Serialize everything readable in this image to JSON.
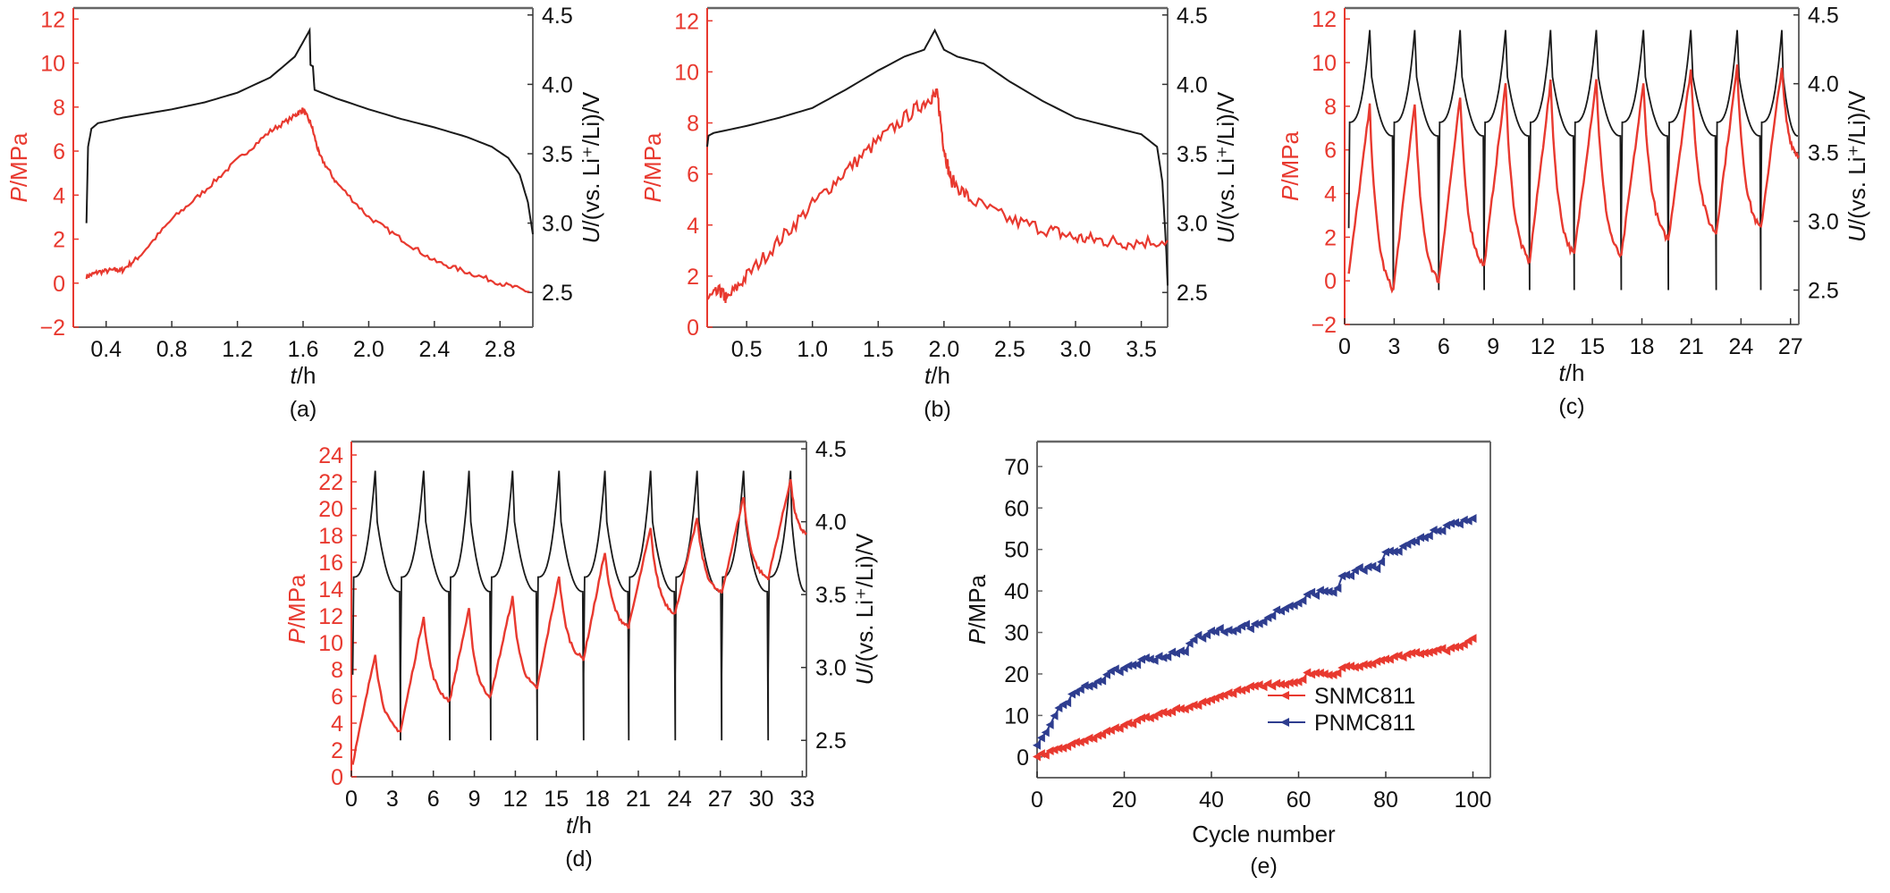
{
  "colors": {
    "pressure": "#e8392f",
    "voltage": "#1a1a1a",
    "snmc": "#e8392f",
    "pnmc": "#2e3d8f",
    "frame": "#666666"
  },
  "chart_data": [
    {
      "id": "a",
      "type": "line",
      "panel_label": "(a)",
      "xlabel_italic": "t",
      "xlabel_rest": "/h",
      "ylabel_italic": "P",
      "ylabel_rest": "/MPa",
      "y2label_italic": "U",
      "y2label_rest": "/(vs. Li⁺/Li)/V",
      "xlim": [
        0.2,
        3.0
      ],
      "ylim": [
        -2,
        12.5
      ],
      "y2lim": [
        2.25,
        4.55
      ],
      "xticks": [
        0.4,
        0.8,
        1.2,
        1.6,
        2.0,
        2.4,
        2.8
      ],
      "xtick_labels": [
        "0.4",
        "0.8",
        "1.2",
        "1.6",
        "2.0",
        "2.4",
        "2.8"
      ],
      "yticks": [
        -2,
        0,
        2,
        4,
        6,
        8,
        10,
        12
      ],
      "ytick_labels": [
        "−2",
        "0",
        "2",
        "4",
        "6",
        "8",
        "10",
        "12"
      ],
      "y2ticks": [
        2.5,
        3.0,
        3.5,
        4.0,
        4.5
      ],
      "y2tick_labels": [
        "2.5",
        "3.0",
        "3.5",
        "4.0",
        "4.5"
      ],
      "series": [
        {
          "name": "Pressure",
          "axis": "left",
          "x": [
            0.28,
            0.35,
            0.45,
            0.5,
            0.6,
            0.8,
            1.0,
            1.2,
            1.4,
            1.55,
            1.6,
            1.65,
            1.7,
            1.8,
            2.0,
            2.2,
            2.4,
            2.6,
            2.8,
            2.98
          ],
          "y": [
            0.3,
            0.5,
            0.6,
            0.6,
            1.2,
            2.9,
            4.2,
            5.6,
            6.9,
            7.6,
            7.9,
            7.2,
            5.8,
            4.6,
            3.0,
            2.0,
            1.0,
            0.5,
            0.0,
            -0.4
          ]
        },
        {
          "name": "Voltage",
          "axis": "right",
          "x": [
            0.28,
            0.29,
            0.31,
            0.35,
            0.5,
            0.8,
            1.0,
            1.2,
            1.4,
            1.55,
            1.64,
            1.645,
            1.66,
            1.67,
            1.8,
            2.0,
            2.2,
            2.4,
            2.6,
            2.75,
            2.85,
            2.92,
            2.97,
            3.0
          ],
          "y": [
            3.0,
            3.55,
            3.68,
            3.72,
            3.76,
            3.82,
            3.87,
            3.94,
            4.05,
            4.2,
            4.39,
            4.14,
            4.13,
            3.96,
            3.9,
            3.82,
            3.75,
            3.69,
            3.62,
            3.55,
            3.47,
            3.35,
            3.15,
            2.92
          ]
        }
      ]
    },
    {
      "id": "b",
      "type": "line",
      "panel_label": "(b)",
      "xlabel_italic": "t",
      "xlabel_rest": "/h",
      "ylabel_italic": "P",
      "ylabel_rest": "/MPa",
      "y2label_italic": "U",
      "y2label_rest": "/(vs. Li⁺/Li)/V",
      "xlim": [
        0.2,
        3.7
      ],
      "ylim": [
        0,
        12.5
      ],
      "y2lim": [
        2.25,
        4.55
      ],
      "xticks": [
        0.5,
        1.0,
        1.5,
        2.0,
        2.5,
        3.0,
        3.5
      ],
      "xtick_labels": [
        "0.5",
        "1.0",
        "1.5",
        "2.0",
        "2.5",
        "3.0",
        "3.5"
      ],
      "yticks": [
        0,
        2,
        4,
        6,
        8,
        10,
        12
      ],
      "ytick_labels": [
        "0",
        "2",
        "4",
        "6",
        "8",
        "10",
        "12"
      ],
      "y2ticks": [
        2.5,
        3.0,
        3.5,
        4.0,
        4.5
      ],
      "y2tick_labels": [
        "2.5",
        "3.0",
        "3.5",
        "4.0",
        "4.5"
      ],
      "series": [
        {
          "name": "Pressure",
          "axis": "left",
          "x": [
            0.2,
            0.3,
            0.35,
            0.5,
            0.75,
            1.0,
            1.25,
            1.5,
            1.75,
            1.9,
            1.95,
            2.0,
            2.05,
            2.2,
            2.5,
            2.8,
            3.0,
            3.2,
            3.4,
            3.7
          ],
          "y": [
            1.1,
            1.4,
            1.1,
            2.0,
            3.4,
            4.8,
            6.1,
            7.3,
            8.4,
            9.0,
            9.1,
            7.0,
            5.8,
            5.0,
            4.2,
            3.8,
            3.5,
            3.4,
            3.3,
            3.4
          ]
        },
        {
          "name": "Voltage",
          "axis": "right",
          "x": [
            0.2,
            0.21,
            0.25,
            0.5,
            0.75,
            1.0,
            1.25,
            1.5,
            1.7,
            1.85,
            1.93,
            2.0,
            2.1,
            2.3,
            2.5,
            2.75,
            3.0,
            3.25,
            3.5,
            3.62,
            3.66,
            3.69,
            3.7
          ],
          "y": [
            3.55,
            3.63,
            3.65,
            3.7,
            3.76,
            3.83,
            3.96,
            4.1,
            4.2,
            4.25,
            4.39,
            4.25,
            4.2,
            4.15,
            4.02,
            3.88,
            3.76,
            3.7,
            3.64,
            3.55,
            3.3,
            2.8,
            2.55
          ]
        }
      ]
    },
    {
      "id": "c",
      "type": "line",
      "panel_label": "(c)",
      "xlabel_italic": "t",
      "xlabel_rest": "/h",
      "ylabel_italic": "P",
      "ylabel_rest": "/MPa",
      "y2label_italic": "U",
      "y2label_rest": "/(vs. Li⁺/Li)/V",
      "xlim": [
        0,
        27.5
      ],
      "ylim": [
        -2,
        12.5
      ],
      "y2lim": [
        2.25,
        4.55
      ],
      "xticks": [
        0,
        3,
        6,
        9,
        12,
        15,
        18,
        21,
        24,
        27
      ],
      "xtick_labels": [
        "0",
        "3",
        "6",
        "9",
        "12",
        "15",
        "18",
        "21",
        "24",
        "27"
      ],
      "yticks": [
        -2,
        0,
        2,
        4,
        6,
        8,
        10,
        12
      ],
      "ytick_labels": [
        "−2",
        "0",
        "2",
        "4",
        "6",
        "8",
        "10",
        "12"
      ],
      "y2ticks": [
        2.5,
        3.0,
        3.5,
        4.0,
        4.5
      ],
      "y2tick_labels": [
        "2.5",
        "3.0",
        "3.5",
        "4.0",
        "4.5"
      ],
      "cycles": {
        "starts": [
          0.25,
          2.95,
          5.7,
          8.45,
          11.2,
          13.9,
          16.75,
          19.6,
          22.5,
          25.2
        ],
        "period_end": 27.5,
        "pressure_peaks": [
          8.0,
          8.2,
          8.4,
          9.0,
          9.1,
          9.2,
          9.0,
          9.7,
          9.8,
          9.8
        ],
        "pressure_troughs": [
          0.3,
          -0.4,
          0.0,
          0.7,
          0.9,
          1.2,
          1.1,
          1.9,
          2.2,
          2.4
        ],
        "voltage_peak": 4.39,
        "voltage_min": 2.5,
        "voltage_start": 3.72
      }
    },
    {
      "id": "d",
      "type": "line",
      "panel_label": "(d)",
      "xlabel_italic": "t",
      "xlabel_rest": "/h",
      "ylabel_italic": "P",
      "ylabel_rest": "/MPa",
      "y2label_italic": "U",
      "y2label_rest": "/(vs. Li⁺/Li)/V",
      "xlim": [
        0,
        33.3
      ],
      "ylim": [
        0,
        25
      ],
      "y2lim": [
        2.25,
        4.55
      ],
      "xticks": [
        0,
        3,
        6,
        9,
        12,
        15,
        18,
        21,
        24,
        27,
        30,
        33
      ],
      "xtick_labels": [
        "0",
        "3",
        "6",
        "9",
        "12",
        "15",
        "18",
        "21",
        "24",
        "27",
        "30",
        "33"
      ],
      "yticks": [
        0,
        2,
        4,
        6,
        8,
        10,
        12,
        14,
        16,
        18,
        20,
        22,
        24
      ],
      "ytick_labels": [
        "0",
        "2",
        "4",
        "6",
        "8",
        "10",
        "12",
        "14",
        "16",
        "18",
        "20",
        "22",
        "24"
      ],
      "y2ticks": [
        2.5,
        3.0,
        3.5,
        4.0,
        4.5
      ],
      "y2tick_labels": [
        "2.5",
        "3.0",
        "3.5",
        "4.0",
        "4.5"
      ],
      "cycles": {
        "starts": [
          0.1,
          3.6,
          7.2,
          10.2,
          13.6,
          17.0,
          20.3,
          23.7,
          27.1,
          30.5
        ],
        "period_end": 33.3,
        "pressure_peaks": [
          9.2,
          12.0,
          12.5,
          13.4,
          15.0,
          16.8,
          18.5,
          19.3,
          20.9,
          22.2
        ],
        "pressure_troughs": [
          1.0,
          3.4,
          5.7,
          6.0,
          6.6,
          8.8,
          11.2,
          12.2,
          13.7,
          14.8
        ],
        "voltage_peak": 4.35,
        "voltage_min": 2.5,
        "voltage_start": 3.62
      }
    },
    {
      "id": "e",
      "type": "line",
      "panel_label": "(e)",
      "xlabel": "Cycle number",
      "ylabel_italic": "P",
      "ylabel_rest": "/MPa",
      "xlim": [
        0,
        104
      ],
      "ylim": [
        -5,
        76
      ],
      "xticks": [
        0,
        20,
        40,
        60,
        80,
        100
      ],
      "xtick_labels": [
        "0",
        "20",
        "40",
        "60",
        "80",
        "100"
      ],
      "yticks": [
        0,
        10,
        20,
        30,
        40,
        50,
        60,
        70
      ],
      "ytick_labels": [
        "0",
        "10",
        "20",
        "30",
        "40",
        "50",
        "60",
        "70"
      ],
      "legend_position": "lower-right",
      "series": [
        {
          "name": "SNMC811",
          "marker": "left-triangle",
          "x": [
            0,
            5,
            10,
            15,
            20,
            25,
            30,
            35,
            40,
            45,
            50,
            55,
            60,
            62,
            65,
            68,
            70,
            75,
            80,
            85,
            90,
            95,
            100
          ],
          "y": [
            0,
            2,
            3.5,
            5.5,
            7.5,
            9.5,
            11,
            12,
            14,
            15.5,
            17,
            17.5,
            18,
            20,
            20,
            19.5,
            21.5,
            22,
            23.5,
            24.5,
            25.5,
            26,
            28.5
          ]
        },
        {
          "name": "PNMC811",
          "marker": "left-triangle",
          "x": [
            0,
            2,
            4,
            6,
            10,
            15,
            20,
            25,
            30,
            33,
            35,
            37,
            40,
            45,
            48,
            50,
            55,
            60,
            65,
            68,
            70,
            75,
            78,
            80,
            83,
            85,
            90,
            93,
            95,
            97,
            100
          ],
          "y": [
            3.5,
            6,
            10,
            13,
            16,
            19,
            21.5,
            23.5,
            24.5,
            25,
            27,
            29,
            30,
            31,
            31.5,
            31.5,
            35,
            37.5,
            40,
            39.5,
            43,
            45.5,
            45.5,
            49,
            49,
            51.5,
            54,
            54,
            56.5,
            56,
            58
          ]
        }
      ]
    }
  ]
}
